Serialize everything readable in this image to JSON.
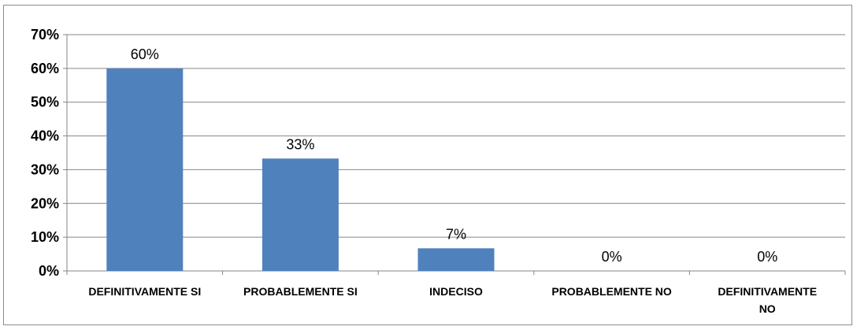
{
  "chart_data": {
    "type": "bar",
    "categories": [
      "DEFINITIVAMENTE SI",
      "PROBABLEMENTE SI",
      "INDECISO",
      "PROBABLEMENTE NO",
      "DEFINITIVAMENTE NO"
    ],
    "category_lines": [
      [
        "DEFINITIVAMENTE SI"
      ],
      [
        "PROBABLEMENTE SI"
      ],
      [
        "INDECISO"
      ],
      [
        "PROBABLEMENTE NO"
      ],
      [
        "DEFINITIVAMENTE",
        "NO"
      ]
    ],
    "values": [
      0.6,
      0.333,
      0.067,
      0,
      0
    ],
    "data_labels": [
      "60%",
      "33%",
      "7%",
      "0%",
      "0%"
    ],
    "yticks": [
      0,
      0.1,
      0.2,
      0.3,
      0.4,
      0.5,
      0.6,
      0.7
    ],
    "ytick_labels": [
      "0%",
      "10%",
      "20%",
      "30%",
      "40%",
      "50%",
      "60%",
      "70%"
    ],
    "ylim": [
      0,
      0.7
    ],
    "grid": true,
    "bar_color": "#4f81bd",
    "grid_color": "#868686",
    "title": "",
    "xlabel": "",
    "ylabel": ""
  }
}
